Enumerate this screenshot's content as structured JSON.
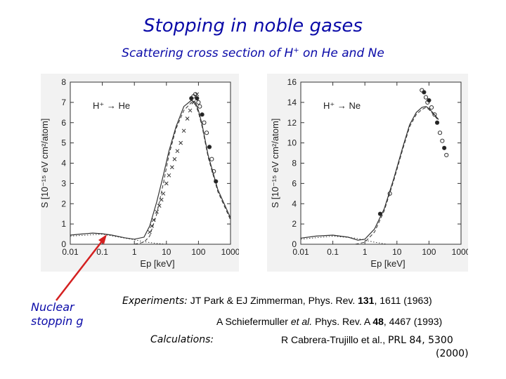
{
  "slide": {
    "title": "Stopping in noble gases",
    "subtitle_prefix": "Scattering cross section of H",
    "subtitle_sup": "+",
    "subtitle_suffix": " on He and Ne",
    "nuclear_label": "Nuclear stoppin g",
    "arrow_color": "#d42020",
    "text_color": "#0a0aa8"
  },
  "references": {
    "experiments_label": "Experiments:",
    "ref1_authors": " JT Park & EJ Zimmerman, Phys. Rev. ",
    "ref1_volume": "131",
    "ref1_rest": ", 1611 (1963)",
    "ref2_authors": "A Schiefermuller ",
    "ref2_etal": "et al.",
    "ref2_journal": " Phys. Rev. A ",
    "ref2_volume": "48",
    "ref2_rest": ", 4467 (1993)",
    "calculations_label": "Calculations:",
    "ref3_authors": "R Cabrera-Trujillo et al., ",
    "ref3_journal": "PRL 84, 5300",
    "ref3_year": "(2000)"
  },
  "chart_data": [
    {
      "type": "line",
      "panel_label": "H⁺ → He",
      "xlabel": "E_p [keV]",
      "ylabel": "S [10⁻¹⁵ eV cm²/atom]",
      "xscale": "log",
      "xlim": [
        0.01,
        1000
      ],
      "ylim": [
        0,
        8
      ],
      "xticks": [
        "0.01",
        "0.1",
        "1",
        "10",
        "100",
        "1000"
      ],
      "yticks": [
        "0",
        "1",
        "2",
        "3",
        "4",
        "5",
        "6",
        "7",
        "8"
      ],
      "series": [
        {
          "style": "solid",
          "x": [
            0.01,
            0.02,
            0.05,
            0.1,
            0.2,
            0.5,
            1,
            2,
            3,
            5,
            8,
            12,
            20,
            35,
            60,
            80,
            100,
            130,
            200,
            400,
            1000
          ],
          "y": [
            0.45,
            0.5,
            0.55,
            0.52,
            0.45,
            0.32,
            0.25,
            0.35,
            0.9,
            2.1,
            3.4,
            4.6,
            5.8,
            6.8,
            7.1,
            7.0,
            6.6,
            5.9,
            4.4,
            2.7,
            1.3
          ]
        },
        {
          "style": "dashed",
          "x": [
            1,
            2,
            3,
            5,
            8,
            12,
            20,
            35,
            60,
            80,
            100,
            130,
            200,
            400,
            1000
          ],
          "y": [
            0.0,
            0.1,
            0.4,
            1.5,
            3.0,
            4.4,
            5.7,
            6.6,
            7.0,
            6.9,
            6.5,
            5.8,
            4.3,
            2.6,
            1.2
          ]
        },
        {
          "style": "dotted",
          "x": [
            0.01,
            0.1,
            0.5,
            1,
            2,
            5,
            10
          ],
          "y": [
            0.4,
            0.5,
            0.3,
            0.22,
            0.12,
            0.04,
            0.0
          ]
        },
        {
          "style": "markers",
          "marker": "x",
          "x": [
            3,
            3.5,
            4,
            5,
            6,
            7,
            8,
            10,
            12,
            15,
            18,
            22,
            28,
            35,
            45,
            55,
            70,
            90
          ],
          "y": [
            0.6,
            0.9,
            1.2,
            1.6,
            1.9,
            2.2,
            2.5,
            3.0,
            3.4,
            3.8,
            4.2,
            4.6,
            5.0,
            5.6,
            6.2,
            6.6,
            7.0,
            7.4
          ]
        },
        {
          "style": "markers",
          "marker": "circle",
          "x": [
            60,
            70,
            80,
            90,
            100,
            110,
            130,
            150,
            180,
            220,
            260,
            300,
            350
          ],
          "y": [
            7.2,
            7.3,
            7.4,
            7.2,
            7.0,
            6.8,
            6.4,
            6.0,
            5.5,
            4.8,
            4.2,
            3.6,
            3.1
          ]
        }
      ]
    },
    {
      "type": "line",
      "panel_label": "H⁺ → Ne",
      "xlabel": "E_p [keV]",
      "ylabel": "S [10⁻¹⁵ eV cm²/atom]",
      "xscale": "log",
      "xlim": [
        0.01,
        1000
      ],
      "ylim": [
        0,
        16
      ],
      "xticks": [
        "0.01",
        "0.1",
        "1",
        "10",
        "100",
        "1000"
      ],
      "yticks": [
        "0",
        "2",
        "4",
        "6",
        "8",
        "10",
        "12",
        "14",
        "16"
      ],
      "series": [
        {
          "style": "solid",
          "x": [
            0.01,
            0.03,
            0.1,
            0.3,
            0.6,
            1,
            2,
            4,
            8,
            15,
            25,
            40,
            60,
            80,
            100,
            130,
            200
          ],
          "y": [
            0.6,
            0.8,
            0.9,
            0.7,
            0.4,
            0.5,
            1.5,
            3.5,
            6.5,
            9.5,
            11.8,
            13.0,
            13.5,
            13.6,
            13.4,
            13.0,
            12.3
          ]
        },
        {
          "style": "dashed",
          "x": [
            0.5,
            1,
            2,
            4,
            8,
            15,
            25,
            40,
            60,
            80,
            100,
            130,
            200
          ],
          "y": [
            0.0,
            0.2,
            1.2,
            3.3,
            6.3,
            9.3,
            11.6,
            12.8,
            13.3,
            13.5,
            13.3,
            12.9,
            12.2
          ]
        },
        {
          "style": "dotted",
          "x": [
            0.01,
            0.1,
            0.5,
            1,
            2,
            5
          ],
          "y": [
            0.5,
            0.8,
            0.6,
            0.4,
            0.2,
            0.0
          ]
        },
        {
          "style": "markers",
          "marker": "circle",
          "x": [
            3,
            6,
            60,
            70,
            80,
            90,
            100,
            120,
            150,
            180,
            220,
            260,
            300,
            350
          ],
          "y": [
            3.0,
            5.0,
            15.2,
            15.0,
            14.5,
            14.0,
            14.2,
            13.5,
            12.8,
            12.0,
            11.0,
            10.2,
            9.5,
            8.8
          ]
        }
      ]
    }
  ]
}
